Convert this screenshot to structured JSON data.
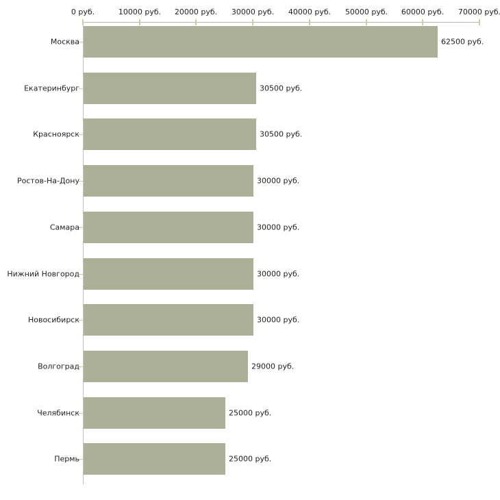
{
  "chart_data": {
    "type": "bar",
    "orientation": "horizontal",
    "title": "",
    "xlabel": "",
    "ylabel": "",
    "unit": "руб.",
    "xlim": [
      0,
      70000
    ],
    "grid": "off",
    "legend": "none",
    "categories": [
      "Москва",
      "Екатеринбург",
      "Красноярск",
      "Ростов-На-Дону",
      "Самара",
      "Нижний Новгород",
      "Новосибирск",
      "Волгоград",
      "Челябинск",
      "Пермь"
    ],
    "values": [
      62500,
      30500,
      30500,
      30000,
      30000,
      30000,
      30000,
      29000,
      25000,
      25000
    ],
    "value_labels": [
      "62500 руб.",
      "30500 руб.",
      "30500 руб.",
      "30000 руб.",
      "30000 руб.",
      "30000 руб.",
      "30000 руб.",
      "29000 руб.",
      "25000 руб.",
      "25000 руб."
    ],
    "x_tick_values": [
      0,
      10000,
      20000,
      30000,
      40000,
      50000,
      60000,
      70000
    ],
    "x_tick_labels": [
      "0 руб.",
      "10000 руб.",
      "20000 руб.",
      "30000 руб.",
      "40000 руб.",
      "50000 руб.",
      "60000 руб.",
      "70000 руб."
    ],
    "colors": {
      "bar": "#aab198",
      "axis": "#b6b6ae",
      "tick": "#cbcda6",
      "text": "#1f1f1f",
      "background": "#ffffff"
    }
  }
}
